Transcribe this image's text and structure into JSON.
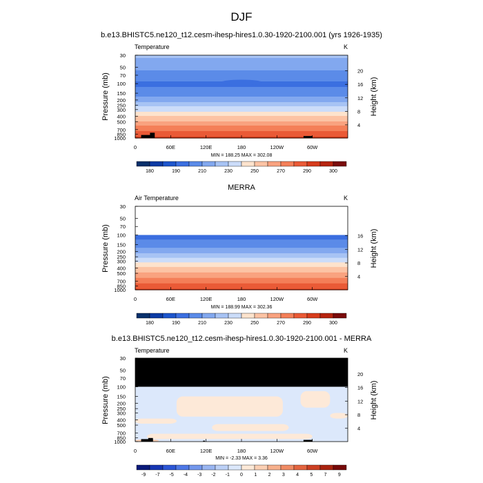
{
  "figure": {
    "title": "DJF",
    "season": "DJF"
  },
  "colors": {
    "temperature_levels": [
      "#08306b",
      "#0c3ba4",
      "#1d55cc",
      "#3b6fe0",
      "#5b8be8",
      "#82a8ef",
      "#a7c3f4",
      "#cbdcf9",
      "#fde3cd",
      "#fcc3a4",
      "#f9a27f",
      "#f47f58",
      "#ea5a36",
      "#d73c1c",
      "#b6240f",
      "#7a0b0b"
    ],
    "difference_levels": [
      "#0a1a7a",
      "#1636b2",
      "#2c56d6",
      "#4d78e6",
      "#7397ec",
      "#99b5f1",
      "#bcd0f6",
      "#dce8fb",
      "#fde9d8",
      "#fbd0b4",
      "#f7b08c",
      "#f08b64",
      "#e3643f",
      "#cc3f22",
      "#a92310",
      "#760909"
    ],
    "missing": "#000000",
    "ice_topo": "#000000"
  },
  "chart_data": [
    {
      "type": "heatmap",
      "name": "model",
      "title": "b.e13.BHISTC5.ne120_t12.cesm-ihesp-hires1.0.30-1920-2100.001 (yrs 1926-1935)",
      "left_label": "Temperature",
      "right_label": "K",
      "xlabel": "",
      "ylabel": "Pressure (mb)",
      "y2label": "Height (km)",
      "x_ticks": [
        "0",
        "60E",
        "120E",
        "180",
        "120W",
        "60W"
      ],
      "x_tick_lon": [
        0,
        60,
        120,
        180,
        240,
        300
      ],
      "xlim": [
        0,
        360
      ],
      "y_ticks": [
        "30",
        "50",
        "70",
        "100",
        "150",
        "200",
        "250",
        "300",
        "400",
        "500",
        "700",
        "850",
        "1000"
      ],
      "y_tick_p": [
        30,
        50,
        70,
        100,
        150,
        200,
        250,
        300,
        400,
        500,
        700,
        850,
        1000
      ],
      "ylim": [
        30,
        1000
      ],
      "y2_ticks": [
        "20",
        "16",
        "12",
        "8",
        "4"
      ],
      "y2_tick_km": [
        20,
        16,
        12,
        8,
        4
      ],
      "min_max_text": "MIN = 188.25  MAX = 302.08",
      "min": 188.25,
      "max": 302.08,
      "profile": [
        [
          30,
          222
        ],
        [
          50,
          214
        ],
        [
          70,
          205
        ],
        [
          100,
          198
        ],
        [
          150,
          203
        ],
        [
          200,
          216
        ],
        [
          250,
          227
        ],
        [
          300,
          236
        ],
        [
          400,
          251
        ],
        [
          500,
          261
        ],
        [
          700,
          277
        ],
        [
          850,
          285
        ],
        [
          1000,
          292
        ]
      ],
      "cold_spot": {
        "lon_center": 180,
        "lon_halfwidth": 35,
        "p_center": 95,
        "delta": -7
      },
      "topography": [
        {
          "lon_start": 10,
          "lon_end": 30,
          "p_top": 880
        },
        {
          "lon_start": 25,
          "lon_end": 33,
          "p_top": 800
        },
        {
          "lon_start": 285,
          "lon_end": 300,
          "p_top": 920
        }
      ],
      "colorbar_labels": [
        "180",
        "190",
        "210",
        "230",
        "250",
        "270",
        "290",
        "300"
      ],
      "colorbar_levels": [
        175,
        180,
        185,
        190,
        200,
        210,
        220,
        230,
        240,
        250,
        260,
        270,
        280,
        290,
        295,
        300
      ]
    },
    {
      "type": "heatmap",
      "name": "obs",
      "title": "MERRA",
      "left_label": "Air Temperature",
      "right_label": "K",
      "xlabel": "",
      "ylabel": "Pressure (mb)",
      "y2label": "Height (km)",
      "x_ticks": [
        "0",
        "60E",
        "120E",
        "180",
        "120W",
        "60W"
      ],
      "x_tick_lon": [
        0,
        60,
        120,
        180,
        240,
        300
      ],
      "xlim": [
        0,
        360
      ],
      "y_ticks": [
        "30",
        "50",
        "70",
        "100",
        "150",
        "200",
        "250",
        "300",
        "400",
        "500",
        "700",
        "850",
        "1000"
      ],
      "y_tick_p": [
        30,
        50,
        70,
        100,
        150,
        200,
        250,
        300,
        400,
        500,
        700,
        850,
        1000
      ],
      "ylim": [
        30,
        1000
      ],
      "y2_ticks": [
        "16",
        "12",
        "8",
        "4"
      ],
      "y2_tick_km": [
        16,
        12,
        8,
        4
      ],
      "data_top_p": 100,
      "min_max_text": "MIN = 188.99  MAX = 302.36",
      "min": 188.99,
      "max": 302.36,
      "profile": [
        [
          100,
          197
        ],
        [
          150,
          204
        ],
        [
          200,
          217
        ],
        [
          250,
          228
        ],
        [
          300,
          237
        ],
        [
          400,
          252
        ],
        [
          500,
          262
        ],
        [
          700,
          277
        ],
        [
          850,
          285
        ],
        [
          1000,
          292
        ]
      ],
      "topography": [],
      "colorbar_labels": [
        "180",
        "190",
        "210",
        "230",
        "250",
        "270",
        "290",
        "300"
      ],
      "colorbar_levels": [
        175,
        180,
        185,
        190,
        200,
        210,
        220,
        230,
        240,
        250,
        260,
        270,
        280,
        290,
        295,
        300
      ]
    },
    {
      "type": "heatmap",
      "name": "difference",
      "title": "b.e13.BHISTC5.ne120_t12.cesm-ihesp-hires1.0.30-1920-2100.001 - MERRA",
      "left_label": "Temperature",
      "right_label": "K",
      "xlabel": "",
      "ylabel": "Pressure (mb)",
      "y2label": "Height (km)",
      "x_ticks": [
        "0",
        "60E",
        "120E",
        "180",
        "120W",
        "60W"
      ],
      "x_tick_lon": [
        0,
        60,
        120,
        180,
        240,
        300
      ],
      "xlim": [
        0,
        360
      ],
      "y_ticks": [
        "30",
        "50",
        "70",
        "100",
        "150",
        "200",
        "250",
        "300",
        "400",
        "500",
        "700",
        "850",
        "1000"
      ],
      "y_tick_p": [
        30,
        50,
        70,
        100,
        150,
        200,
        250,
        300,
        400,
        500,
        700,
        850,
        1000
      ],
      "ylim": [
        30,
        1000
      ],
      "y2_ticks": [
        "20",
        "16",
        "12",
        "8",
        "4"
      ],
      "y2_tick_km": [
        20,
        16,
        12,
        8,
        4
      ],
      "missing_above_p": 100,
      "min_max_text": "MIN = -2.33  MAX =  3.36",
      "min": -2.33,
      "max": 3.36,
      "regions": [
        {
          "lon_start": 0,
          "lon_end": 360,
          "p_top": 100,
          "p_bottom": 1000,
          "value": -0.5
        },
        {
          "lon_start": 70,
          "lon_end": 250,
          "p_top": 150,
          "p_bottom": 350,
          "value": 0.5
        },
        {
          "lon_start": 0,
          "lon_end": 70,
          "p_top": 380,
          "p_bottom": 470,
          "value": 0.5
        },
        {
          "lon_start": 130,
          "lon_end": 260,
          "p_top": 480,
          "p_bottom": 640,
          "value": 0.5
        },
        {
          "lon_start": 20,
          "lon_end": 300,
          "p_top": 720,
          "p_bottom": 900,
          "value": 0.5
        },
        {
          "lon_start": 280,
          "lon_end": 330,
          "p_top": 120,
          "p_bottom": 240,
          "value": 0.5
        },
        {
          "lon_start": 330,
          "lon_end": 360,
          "p_top": 300,
          "p_bottom": 380,
          "value": 0.5
        },
        {
          "lon_start": 0,
          "lon_end": 40,
          "p_top": 920,
          "p_bottom": 1000,
          "value": 1.5
        }
      ],
      "topography": [
        {
          "lon_start": 10,
          "lon_end": 30,
          "p_top": 900
        },
        {
          "lon_start": 22,
          "lon_end": 30,
          "p_top": 860
        },
        {
          "lon_start": 115,
          "lon_end": 118,
          "p_top": 960
        },
        {
          "lon_start": 285,
          "lon_end": 300,
          "p_top": 930
        }
      ],
      "colorbar_labels": [
        "-9",
        "-7",
        "-5",
        "-4",
        "-3",
        "-2",
        "-1",
        "0",
        "1",
        "2",
        "3",
        "4",
        "5",
        "7",
        "9"
      ],
      "colorbar_levels": [
        -10,
        -8,
        -6,
        -4.5,
        -3.5,
        -2.5,
        -1.5,
        -0.5,
        0.5,
        1.5,
        2.5,
        3.5,
        4.5,
        6,
        8,
        10
      ]
    }
  ]
}
